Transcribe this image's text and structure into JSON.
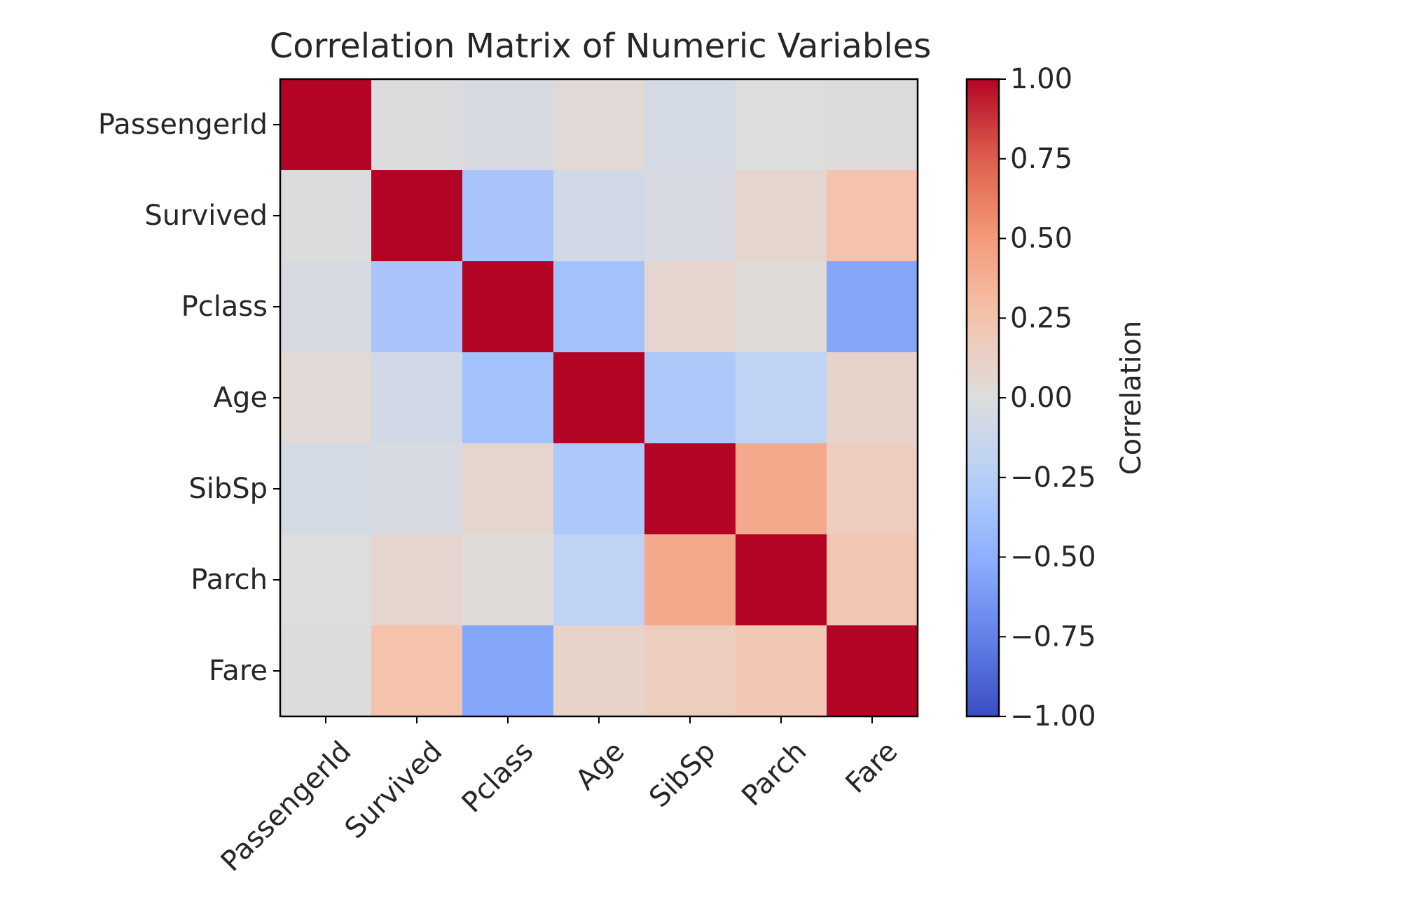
{
  "chart_data": {
    "type": "heatmap",
    "title": "Correlation Matrix of Numeric Variables",
    "row_labels": [
      "PassengerId",
      "Survived",
      "Pclass",
      "Age",
      "SibSp",
      "Parch",
      "Fare"
    ],
    "col_labels": [
      "PassengerId",
      "Survived",
      "Pclass",
      "Age",
      "SibSp",
      "Parch",
      "Fare"
    ],
    "values": [
      [
        1.0,
        -0.01,
        -0.04,
        0.04,
        -0.06,
        -0.0,
        0.01
      ],
      [
        -0.01,
        1.0,
        -0.34,
        -0.08,
        -0.04,
        0.08,
        0.26
      ],
      [
        -0.04,
        -0.34,
        1.0,
        -0.37,
        0.08,
        0.02,
        -0.55
      ],
      [
        0.04,
        -0.08,
        -0.37,
        1.0,
        -0.31,
        -0.19,
        0.1
      ],
      [
        -0.06,
        -0.04,
        0.08,
        -0.31,
        1.0,
        0.41,
        0.16
      ],
      [
        -0.0,
        0.08,
        0.02,
        -0.19,
        0.41,
        1.0,
        0.22
      ],
      [
        0.01,
        0.26,
        -0.55,
        0.1,
        0.16,
        0.22,
        1.0
      ]
    ],
    "colormap": "coolwarm",
    "vmin": -1.0,
    "vmax": 1.0,
    "colorbar": {
      "label": "Correlation",
      "ticks": [
        1.0,
        0.75,
        0.5,
        0.25,
        0.0,
        -0.25,
        -0.5,
        -0.75,
        -1.0
      ],
      "tick_labels": [
        "1.00",
        "0.75",
        "0.50",
        "0.25",
        "0.00",
        "−0.25",
        "−0.50",
        "−0.75",
        "−1.00"
      ]
    },
    "x_tick_rotation": 45,
    "grid": false
  }
}
